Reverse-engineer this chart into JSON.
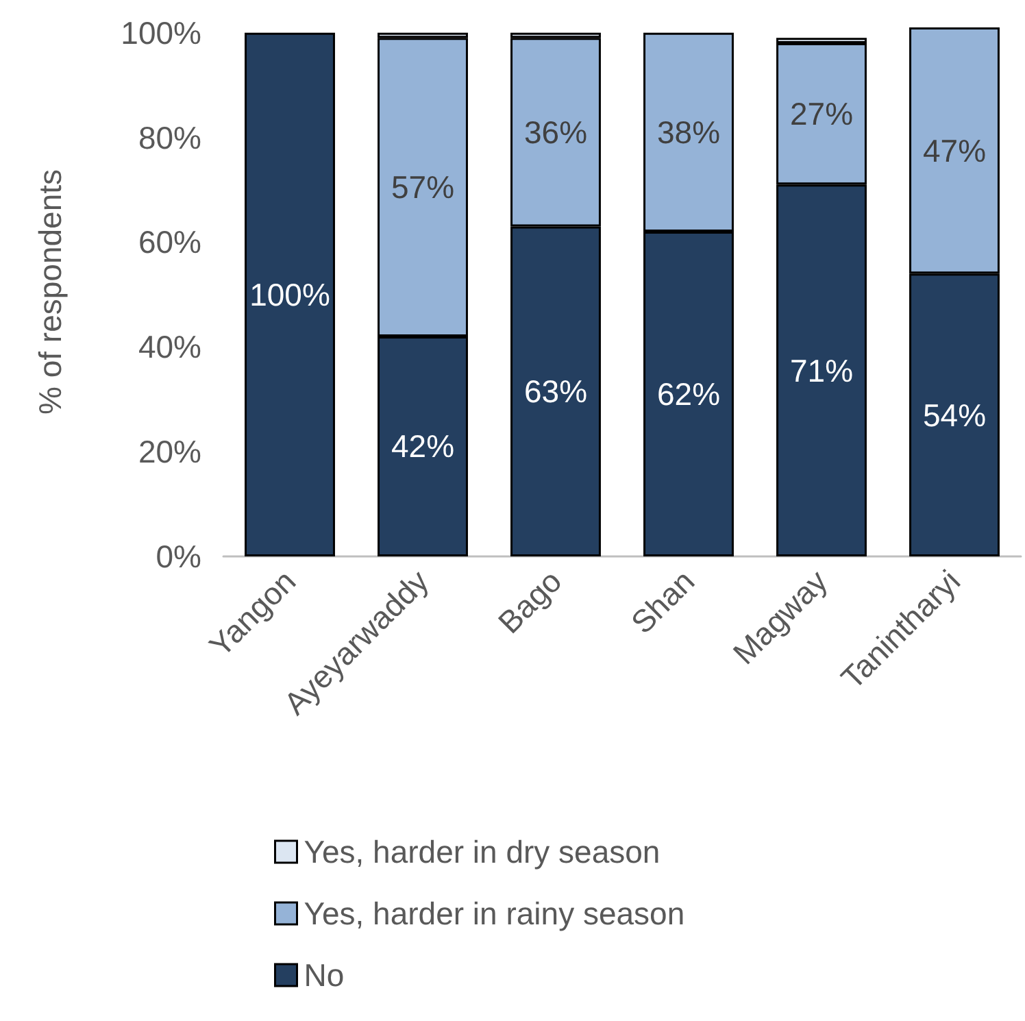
{
  "chart_data": {
    "type": "bar",
    "stacked": true,
    "ylabel": "% of respondents",
    "categories": [
      "Yangon",
      "Ayeyarwaddy",
      "Bago",
      "Shan",
      "Magway",
      "Tanintharyi"
    ],
    "series": [
      {
        "name": "No",
        "color": "#243f60",
        "values": [
          100,
          42,
          63,
          62,
          71,
          54
        ],
        "value_labels": [
          "100%",
          "42%",
          "63%",
          "62%",
          "71%",
          "54%"
        ]
      },
      {
        "name": "Yes, harder in rainy season",
        "color": "#95b3d7",
        "values": [
          null,
          57,
          36,
          38,
          27,
          47
        ],
        "value_labels": [
          null,
          "57%",
          "36%",
          "38%",
          "27%",
          "47%"
        ]
      },
      {
        "name": "Yes, harder in dry season",
        "color": "#dce6f2",
        "values": [
          null,
          1,
          1,
          null,
          1,
          null
        ],
        "value_labels": [
          null,
          null,
          null,
          null,
          null,
          null
        ]
      }
    ],
    "ylim": [
      0,
      101
    ],
    "yticks": [
      {
        "value": 0,
        "label": "0%"
      },
      {
        "value": 20,
        "label": "20%"
      },
      {
        "value": 40,
        "label": "40%"
      },
      {
        "value": 60,
        "label": "60%"
      },
      {
        "value": 80,
        "label": "80%"
      },
      {
        "value": 100,
        "label": "100%"
      }
    ],
    "grid": false,
    "legend": "bottom"
  }
}
